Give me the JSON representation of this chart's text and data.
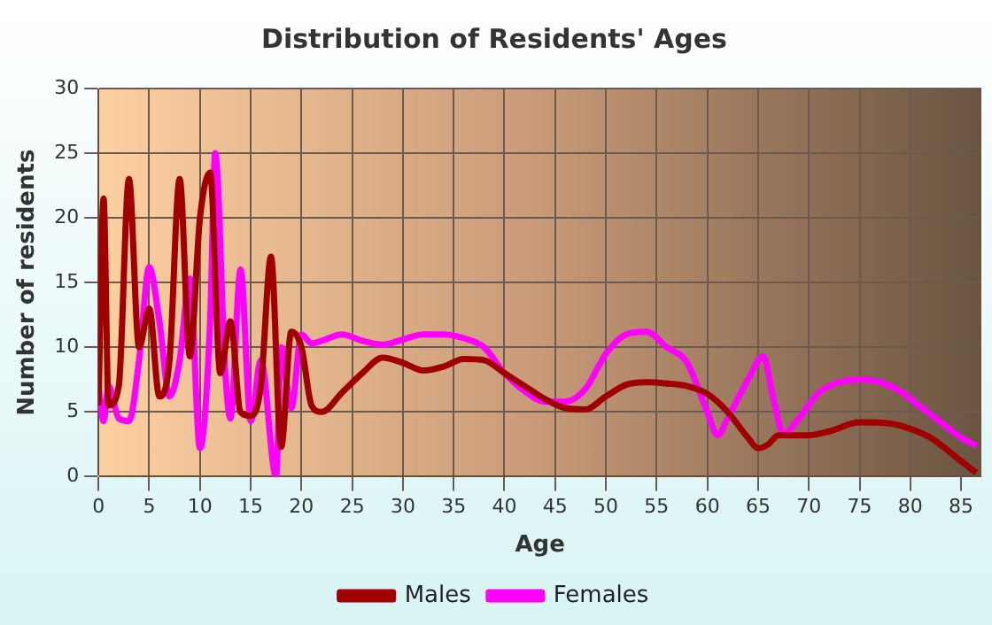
{
  "chart_data": {
    "type": "line",
    "title": "Distribution of Residents' Ages",
    "xlabel": "Age",
    "ylabel": "Number of residents",
    "xlim": [
      0,
      87
    ],
    "xticks": [
      0,
      5,
      10,
      15,
      20,
      25,
      30,
      35,
      40,
      45,
      50,
      55,
      60,
      65,
      70,
      75,
      80,
      85
    ],
    "ylim": [
      0,
      30
    ],
    "yticks": [
      0,
      5,
      10,
      15,
      20,
      25,
      30
    ],
    "grid": true,
    "legend": "bottom",
    "marker": "none",
    "line_style": "solid",
    "series": [
      {
        "name": "Males",
        "color": "#a00000",
        "x": [
          0,
          0.5,
          1,
          2,
          3,
          4,
          5,
          6,
          7,
          8,
          9,
          10,
          11,
          12,
          13,
          14,
          15,
          16,
          17,
          18,
          19,
          20,
          21,
          22,
          24,
          26,
          28,
          30,
          32,
          34,
          36,
          38,
          40,
          42,
          44,
          46,
          48,
          50,
          52,
          54,
          56,
          58,
          60,
          62,
          64,
          65,
          66,
          67,
          70,
          72,
          75,
          78,
          80,
          82,
          85,
          86.5
        ],
        "values": [
          5.5,
          21.5,
          5.5,
          7,
          23,
          10,
          13,
          6.2,
          9,
          23,
          9.3,
          20,
          23.5,
          8,
          12,
          5,
          4.7,
          7,
          17,
          2.3,
          11.2,
          10,
          5.5,
          5,
          6.5,
          8,
          9.2,
          8.8,
          8.2,
          8.5,
          9.1,
          9,
          8,
          7,
          6,
          5.3,
          5.2,
          6.2,
          7.1,
          7.3,
          7.2,
          7,
          6.4,
          5,
          3,
          2.2,
          2.5,
          3.2,
          3.2,
          3.5,
          4.2,
          4.1,
          3.7,
          3,
          1.2,
          0.3
        ]
      },
      {
        "name": "Females",
        "color": "#ff00ff",
        "x": [
          0,
          0.5,
          1,
          2,
          3,
          4,
          5,
          6,
          7,
          8,
          9,
          10,
          11,
          11.5,
          12.5,
          13,
          14,
          15,
          16,
          17.5,
          18,
          19,
          20,
          21,
          22,
          24,
          26,
          28,
          30,
          32,
          34,
          36,
          38,
          40,
          42,
          44,
          46,
          48,
          50,
          52,
          54,
          56,
          58,
          60,
          61,
          62,
          64,
          65.5,
          66.5,
          67.5,
          69,
          71,
          73,
          75,
          77,
          79,
          81,
          83,
          85,
          86.5
        ],
        "values": [
          7,
          4.3,
          7,
          4.5,
          4.3,
          9,
          16.2,
          12,
          6.2,
          9,
          15.3,
          2.2,
          12,
          25,
          8,
          4.5,
          16,
          4.3,
          9,
          0,
          10,
          5.3,
          11,
          10.3,
          10.5,
          11,
          10.5,
          10.2,
          10.6,
          11,
          11,
          10.7,
          10,
          8,
          6.6,
          5.8,
          5.8,
          6.8,
          9.5,
          11,
          11.2,
          10,
          8.8,
          5,
          3.2,
          4.5,
          7.5,
          9.3,
          6,
          3.3,
          4.5,
          6.5,
          7.3,
          7.5,
          7.3,
          6.6,
          5.4,
          4.2,
          3,
          2.4
        ]
      }
    ]
  }
}
